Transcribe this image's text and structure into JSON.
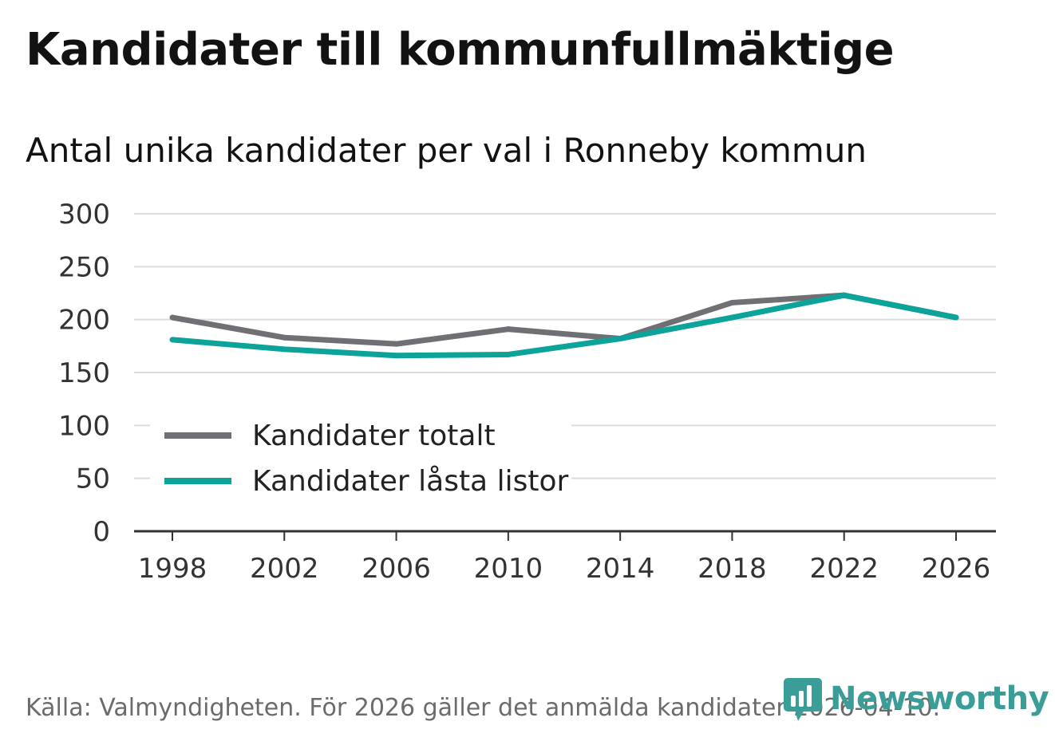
{
  "header": {
    "title": "Kandidater till kommunfullmäktige",
    "subtitle": "Antal unika kandidater per val i Ronneby kommun"
  },
  "chart_data": {
    "type": "line",
    "title": "Kandidater till kommunfullmäktige",
    "subtitle": "Antal unika kandidater per val i Ronneby kommun",
    "xlabel": "",
    "ylabel": "",
    "x": [
      1998,
      2002,
      2006,
      2010,
      2014,
      2018,
      2022,
      2026
    ],
    "ylim": [
      0,
      300
    ],
    "yticks": [
      0,
      50,
      100,
      150,
      200,
      250,
      300
    ],
    "grid": true,
    "legend_position": "bottom-left",
    "series": [
      {
        "name": "Kandidater totalt",
        "color": "#706f74",
        "values": [
          202,
          183,
          177,
          191,
          182,
          216,
          223,
          202
        ]
      },
      {
        "name": "Kandidater låsta listor",
        "color": "#0ba39a",
        "values": [
          181,
          172,
          166,
          167,
          182,
          202,
          223,
          202
        ]
      }
    ]
  },
  "footer": {
    "source": "Källa: Valmyndigheten. För 2026 gäller det anmälda kandidater 2026-04-10."
  },
  "brand": {
    "name": "Newsworthy",
    "logo_icon": "newsworthy-logo-icon",
    "color": "#3a9d98"
  }
}
